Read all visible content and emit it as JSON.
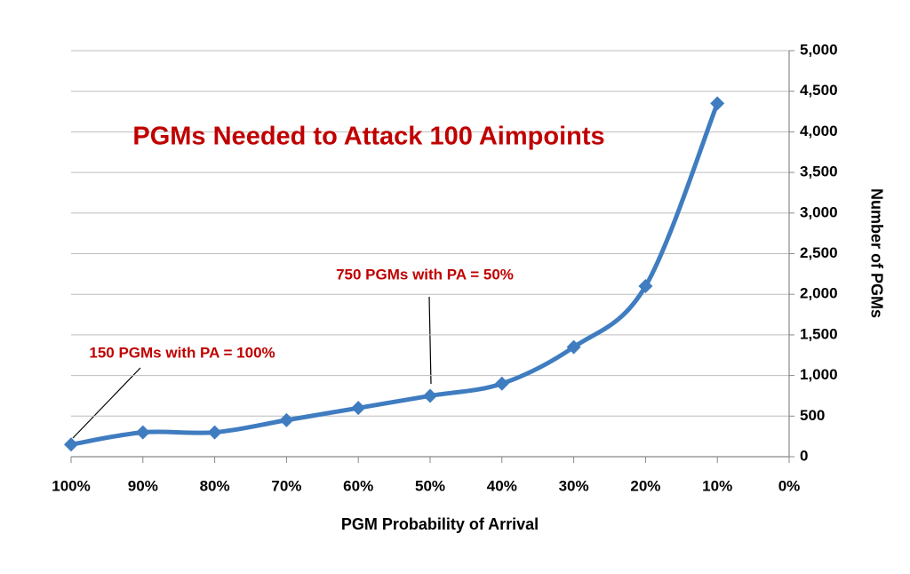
{
  "chart_data": {
    "type": "line",
    "title": "PGMs Needed to Attack 100 Aimpoints",
    "x_label": "PGM Probability of Arrival",
    "y_label": "Number of PGMs",
    "categories": [
      "100%",
      "90%",
      "80%",
      "70%",
      "60%",
      "50%",
      "40%",
      "30%",
      "20%",
      "10%",
      "0%"
    ],
    "series": [
      {
        "name": "PGMs",
        "color": "#3f7cc0",
        "values": [
          150,
          300,
          300,
          450,
          600,
          750,
          900,
          1350,
          2100,
          4350,
          null
        ]
      }
    ],
    "ylim": [
      0,
      5000
    ],
    "yticks": [
      0,
      500,
      {
        "value": 1000,
        "label": "1,000"
      },
      {
        "value": 1500,
        "label": "1,500"
      },
      {
        "value": 2000,
        "label": "2,000"
      },
      {
        "value": 2500,
        "label": "2,500"
      },
      {
        "value": 3000,
        "label": "3,000"
      },
      {
        "value": 3500,
        "label": "3,500"
      },
      {
        "value": 4000,
        "label": "4,000"
      },
      {
        "value": 4500,
        "label": "4,500"
      },
      {
        "value": 5000,
        "label": "5,000"
      }
    ],
    "grid": true,
    "y_axis_side": "right",
    "annotations": [
      {
        "text": "750 PGMs with PA = 50%"
      },
      {
        "text": "150 PGMs with PA = 100%"
      }
    ]
  }
}
